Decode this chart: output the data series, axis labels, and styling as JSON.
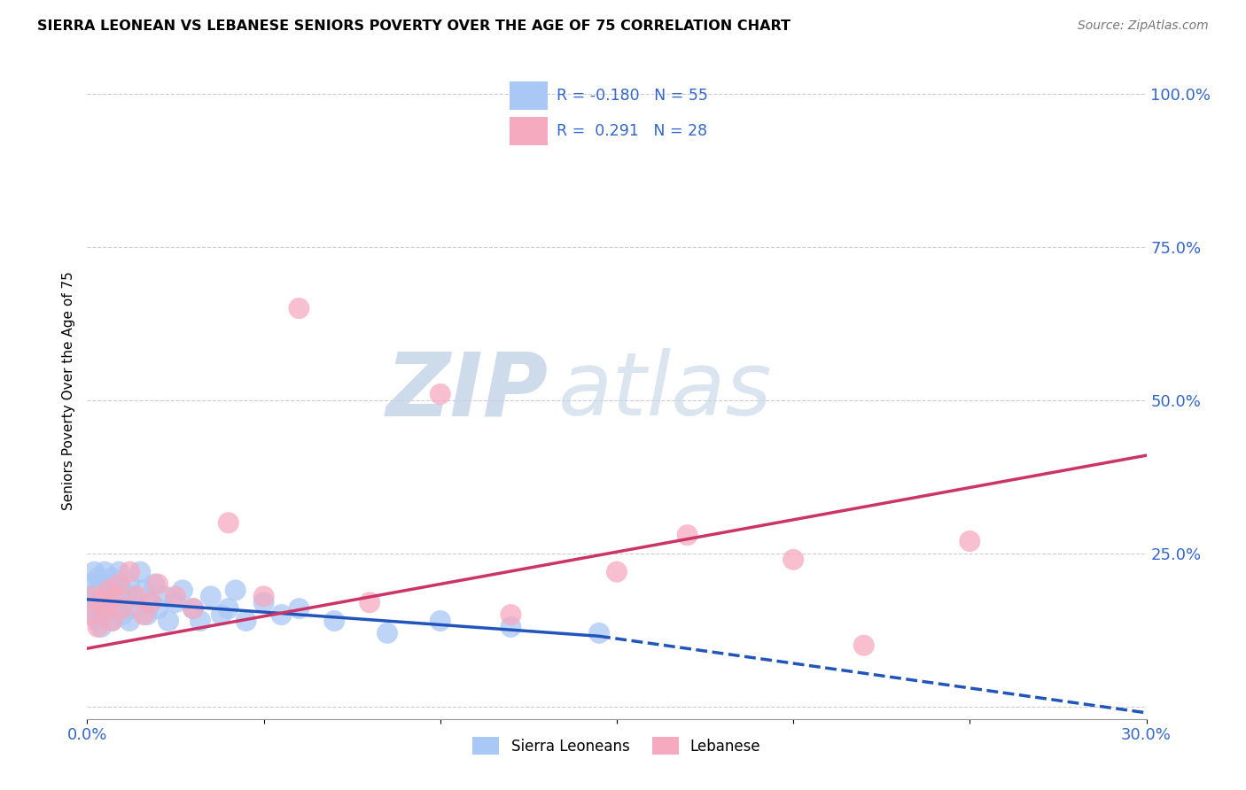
{
  "title": "SIERRA LEONEAN VS LEBANESE SENIORS POVERTY OVER THE AGE OF 75 CORRELATION CHART",
  "source": "Source: ZipAtlas.com",
  "ylabel": "Seniors Poverty Over the Age of 75",
  "xlim": [
    0.0,
    0.3
  ],
  "ylim": [
    -0.02,
    1.05
  ],
  "yticks": [
    0.0,
    0.25,
    0.5,
    0.75,
    1.0
  ],
  "ytick_labels": [
    "",
    "25.0%",
    "50.0%",
    "75.0%",
    "100.0%"
  ],
  "xticks": [
    0.0,
    0.05,
    0.1,
    0.15,
    0.2,
    0.25,
    0.3
  ],
  "xtick_labels": [
    "0.0%",
    "",
    "",
    "",
    "",
    "",
    "30.0%"
  ],
  "sierra_leone_color": "#aac8f5",
  "lebanese_color": "#f5aabf",
  "sierra_leone_line_color": "#2255bb",
  "lebanese_line_color": "#cc3366",
  "sierra_leone_R": -0.18,
  "sierra_leone_N": 55,
  "lebanese_R": 0.291,
  "lebanese_N": 28,
  "watermark_zip": "ZIP",
  "watermark_atlas": "atlas",
  "sl_line_x0": 0.0,
  "sl_line_y0": 0.175,
  "sl_line_x1": 0.145,
  "sl_line_y1": 0.115,
  "sl_line_xd0": 0.145,
  "sl_line_yd0": 0.115,
  "sl_line_xd1": 0.3,
  "sl_line_yd1": -0.01,
  "lb_line_x0": 0.0,
  "lb_line_y0": 0.095,
  "lb_line_x1": 0.3,
  "lb_line_y1": 0.41,
  "sierra_leone_x": [
    0.001,
    0.001,
    0.002,
    0.002,
    0.002,
    0.003,
    0.003,
    0.003,
    0.003,
    0.004,
    0.004,
    0.004,
    0.005,
    0.005,
    0.005,
    0.006,
    0.006,
    0.007,
    0.007,
    0.008,
    0.008,
    0.009,
    0.009,
    0.01,
    0.01,
    0.011,
    0.012,
    0.012,
    0.013,
    0.014,
    0.015,
    0.016,
    0.017,
    0.018,
    0.019,
    0.02,
    0.022,
    0.023,
    0.025,
    0.027,
    0.03,
    0.032,
    0.035,
    0.038,
    0.04,
    0.042,
    0.045,
    0.05,
    0.055,
    0.06,
    0.07,
    0.085,
    0.1,
    0.12,
    0.145
  ],
  "sierra_leone_y": [
    0.18,
    0.2,
    0.15,
    0.22,
    0.17,
    0.14,
    0.19,
    0.16,
    0.21,
    0.13,
    0.18,
    0.2,
    0.16,
    0.22,
    0.15,
    0.19,
    0.17,
    0.21,
    0.14,
    0.18,
    0.2,
    0.16,
    0.22,
    0.15,
    0.19,
    0.17,
    0.2,
    0.14,
    0.18,
    0.16,
    0.22,
    0.19,
    0.15,
    0.17,
    0.2,
    0.16,
    0.18,
    0.14,
    0.17,
    0.19,
    0.16,
    0.14,
    0.18,
    0.15,
    0.16,
    0.19,
    0.14,
    0.17,
    0.15,
    0.16,
    0.14,
    0.12,
    0.14,
    0.13,
    0.12
  ],
  "lebanese_x": [
    0.001,
    0.002,
    0.003,
    0.004,
    0.005,
    0.006,
    0.007,
    0.008,
    0.009,
    0.01,
    0.012,
    0.014,
    0.016,
    0.018,
    0.02,
    0.025,
    0.03,
    0.04,
    0.05,
    0.06,
    0.08,
    0.1,
    0.12,
    0.15,
    0.17,
    0.2,
    0.22,
    0.25
  ],
  "lebanese_y": [
    0.15,
    0.18,
    0.13,
    0.17,
    0.16,
    0.19,
    0.14,
    0.18,
    0.2,
    0.16,
    0.22,
    0.18,
    0.15,
    0.17,
    0.2,
    0.18,
    0.16,
    0.3,
    0.18,
    0.65,
    0.17,
    0.51,
    0.15,
    0.22,
    0.28,
    0.24,
    0.1,
    0.27
  ]
}
